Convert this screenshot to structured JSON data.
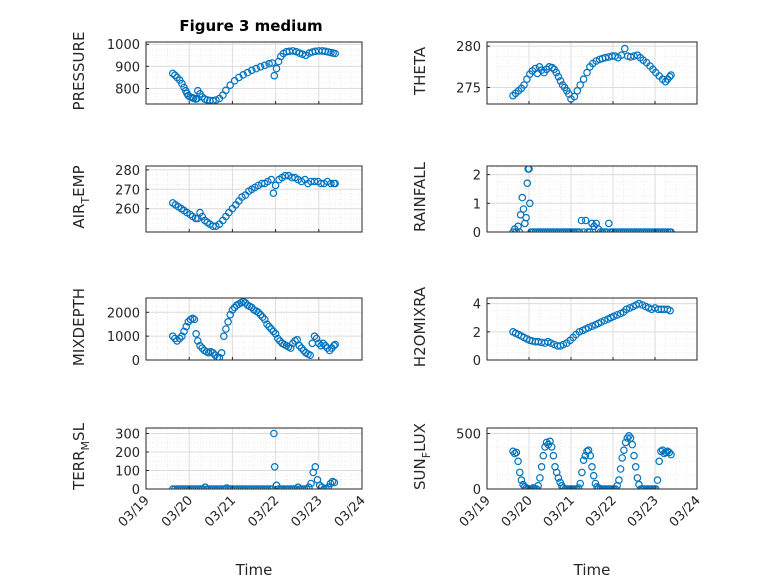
{
  "figure_title": "Figure 3 medium",
  "colors": {
    "marker": "#0072bd",
    "axis": "#262626",
    "grid": "#dcdcdc",
    "minor_grid": "#ebebeb"
  },
  "x_tick_labels": [
    "03/19",
    "03/20",
    "03/21",
    "03/22",
    "03/23",
    "03/24"
  ],
  "x_label": "Time",
  "chart_data": [
    {
      "type": "scatter",
      "id": "pressure",
      "ylabel": "PRESSURE",
      "ylim": [
        730,
        1010
      ],
      "yticks": [
        800,
        900,
        1000
      ],
      "xlim": [
        19,
        24
      ],
      "grid": true,
      "x": [
        19.62,
        19.67,
        19.72,
        19.78,
        19.83,
        19.88,
        19.92,
        19.95,
        19.98,
        20.02,
        20.07,
        20.1,
        20.15,
        20.18,
        20.2,
        20.25,
        20.3,
        20.36,
        20.42,
        20.48,
        20.55,
        20.62,
        20.7,
        20.78,
        20.85,
        20.95,
        21.05,
        21.15,
        21.25,
        21.35,
        21.45,
        21.55,
        21.65,
        21.75,
        21.85,
        21.92,
        21.97,
        22.02,
        22.07,
        22.12,
        22.18,
        22.25,
        22.32,
        22.4,
        22.48,
        22.55,
        22.62,
        22.7,
        22.78,
        22.85,
        22.92,
        23.0,
        23.08,
        23.15,
        23.22,
        23.28,
        23.33,
        23.38
      ],
      "y": [
        868,
        860,
        850,
        838,
        822,
        805,
        790,
        778,
        768,
        762,
        758,
        756,
        752,
        755,
        790,
        776,
        762,
        752,
        748,
        746,
        745,
        748,
        755,
        770,
        792,
        815,
        835,
        850,
        862,
        872,
        882,
        890,
        898,
        905,
        912,
        915,
        858,
        890,
        922,
        945,
        958,
        966,
        968,
        970,
        966,
        960,
        955,
        950,
        960,
        965,
        968,
        970,
        970,
        968,
        965,
        962,
        960,
        958
      ]
    },
    {
      "type": "scatter",
      "id": "theta",
      "ylabel": "THETA",
      "ylim": [
        273,
        280.5
      ],
      "yticks": [
        275,
        280
      ],
      "xlim": [
        19,
        24
      ],
      "grid": true,
      "x": [
        19.62,
        19.68,
        19.75,
        19.82,
        19.88,
        19.95,
        20.02,
        20.08,
        20.15,
        20.2,
        20.25,
        20.3,
        20.36,
        20.42,
        20.48,
        20.55,
        20.6,
        20.65,
        20.7,
        20.75,
        20.8,
        20.85,
        20.9,
        20.95,
        21.0,
        21.08,
        21.15,
        21.22,
        21.3,
        21.38,
        21.45,
        21.52,
        21.6,
        21.68,
        21.75,
        21.82,
        21.9,
        21.98,
        22.05,
        22.12,
        22.2,
        22.28,
        22.35,
        22.42,
        22.5,
        22.58,
        22.65,
        22.72,
        22.8,
        22.88,
        22.95,
        23.02,
        23.1,
        23.18,
        23.25,
        23.3,
        23.35,
        23.38
      ],
      "y": [
        274.0,
        274.3,
        274.6,
        274.9,
        275.3,
        276.0,
        276.6,
        277.0,
        277.3,
        276.7,
        277.5,
        277.1,
        276.8,
        277.2,
        277.5,
        277.4,
        277.2,
        276.8,
        276.3,
        275.8,
        275.3,
        275.0,
        274.6,
        274.2,
        273.6,
        273.9,
        274.6,
        275.3,
        276.0,
        276.8,
        277.5,
        277.9,
        278.2,
        278.4,
        278.5,
        278.6,
        278.7,
        278.8,
        278.8,
        278.6,
        278.9,
        279.7,
        278.8,
        278.7,
        278.8,
        278.9,
        278.6,
        278.3,
        278.0,
        277.6,
        277.2,
        276.8,
        276.4,
        276.0,
        275.7,
        276.0,
        276.3,
        276.5
      ]
    },
    {
      "type": "scatter",
      "id": "air_temp",
      "ylabel": "AIR_TEMP",
      "ylim": [
        248,
        282
      ],
      "yticks": [
        260,
        270,
        280
      ],
      "xlim": [
        19,
        24
      ],
      "grid": true,
      "x": [
        19.62,
        19.68,
        19.75,
        19.82,
        19.88,
        19.95,
        20.02,
        20.08,
        20.15,
        20.2,
        20.25,
        20.3,
        20.36,
        20.42,
        20.48,
        20.55,
        20.62,
        20.7,
        20.78,
        20.85,
        20.92,
        21.0,
        21.08,
        21.15,
        21.22,
        21.3,
        21.38,
        21.45,
        21.52,
        21.6,
        21.68,
        21.75,
        21.82,
        21.9,
        21.95,
        22.0,
        22.08,
        22.15,
        22.22,
        22.3,
        22.38,
        22.45,
        22.52,
        22.6,
        22.68,
        22.75,
        22.82,
        22.9,
        22.98,
        23.05,
        23.12,
        23.2,
        23.28,
        23.35,
        23.38
      ],
      "y": [
        263,
        262,
        261,
        260,
        259,
        258,
        257,
        256,
        255,
        255,
        258,
        256,
        254,
        253,
        252,
        251,
        251,
        252,
        254,
        256,
        258,
        260,
        262,
        264,
        266,
        267,
        269,
        270,
        271,
        272,
        273,
        273,
        274,
        275,
        268,
        272,
        275,
        276,
        277,
        277,
        276,
        276,
        275,
        274,
        275,
        273,
        274,
        274,
        274,
        273,
        273,
        274,
        273,
        273,
        273
      ]
    },
    {
      "type": "scatter",
      "id": "rainfall",
      "ylabel": "RAINFALL",
      "ylim": [
        0,
        2.3
      ],
      "yticks": [
        0,
        1,
        2
      ],
      "xlim": [
        19,
        24
      ],
      "grid": true,
      "x": [
        19.62,
        19.66,
        19.7,
        19.74,
        19.77,
        19.8,
        19.84,
        19.87,
        19.9,
        19.93,
        19.96,
        19.98,
        20.0,
        20.02,
        20.05,
        20.1,
        20.15,
        20.2,
        20.25,
        20.3,
        20.35,
        20.4,
        20.45,
        20.5,
        20.55,
        20.6,
        20.65,
        20.7,
        20.75,
        20.8,
        20.85,
        20.9,
        20.95,
        21.0,
        21.05,
        21.1,
        21.15,
        21.2,
        21.25,
        21.3,
        21.35,
        21.4,
        21.45,
        21.5,
        21.55,
        21.6,
        21.65,
        21.7,
        21.75,
        21.8,
        21.85,
        21.9,
        21.95,
        22.0,
        22.05,
        22.1,
        22.15,
        22.2,
        22.25,
        22.3,
        22.35,
        22.4,
        22.45,
        22.5,
        22.55,
        22.6,
        22.65,
        22.7,
        22.75,
        22.8,
        22.85,
        22.9,
        22.95,
        23.0,
        23.05,
        23.1,
        23.15,
        23.2,
        23.25,
        23.3,
        23.35,
        23.38
      ],
      "y": [
        0.0,
        0.1,
        0.0,
        0.2,
        0.0,
        0.6,
        1.2,
        0.8,
        0.3,
        0.5,
        1.7,
        2.2,
        2.2,
        1.0,
        0.0,
        0.0,
        0.0,
        0.0,
        0.0,
        0.0,
        0.0,
        0.0,
        0.0,
        0.0,
        0.0,
        0.0,
        0.0,
        0.0,
        0.0,
        0.0,
        0.0,
        0.0,
        0.0,
        0.0,
        0.0,
        0.0,
        0.0,
        0.0,
        0.4,
        0.0,
        0.4,
        0.0,
        0.0,
        0.3,
        0.2,
        0.3,
        0.1,
        0.0,
        0.0,
        0.0,
        0.0,
        0.3,
        0.0,
        0.0,
        0.0,
        0.0,
        0.0,
        0.0,
        0.0,
        0.0,
        0.0,
        0.0,
        0.0,
        0.0,
        0.0,
        0.0,
        0.0,
        0.0,
        0.0,
        0.0,
        0.0,
        0.0,
        0.0,
        0.0,
        0.0,
        0.0,
        0.0,
        0.0,
        0.0,
        0.0,
        0.0,
        0.0
      ]
    },
    {
      "type": "scatter",
      "id": "mixdepth",
      "ylabel": "MIXDEPTH",
      "ylim": [
        0,
        2600
      ],
      "yticks": [
        0,
        1000,
        2000
      ],
      "xlim": [
        19,
        24
      ],
      "grid": true,
      "x": [
        19.62,
        19.67,
        19.72,
        19.78,
        19.83,
        19.88,
        19.93,
        19.98,
        20.03,
        20.08,
        20.12,
        20.16,
        20.2,
        20.25,
        20.3,
        20.35,
        20.4,
        20.45,
        20.5,
        20.55,
        20.6,
        20.65,
        20.7,
        20.75,
        20.8,
        20.85,
        20.9,
        20.95,
        21.0,
        21.05,
        21.1,
        21.15,
        21.2,
        21.25,
        21.3,
        21.35,
        21.4,
        21.45,
        21.5,
        21.55,
        21.6,
        21.65,
        21.7,
        21.75,
        21.8,
        21.85,
        21.9,
        21.95,
        22.0,
        22.05,
        22.1,
        22.15,
        22.2,
        22.25,
        22.3,
        22.35,
        22.4,
        22.45,
        22.5,
        22.55,
        22.6,
        22.65,
        22.7,
        22.75,
        22.8,
        22.85,
        22.9,
        22.95,
        23.0,
        23.05,
        23.1,
        23.15,
        23.2,
        23.25,
        23.3,
        23.35,
        23.38
      ],
      "y": [
        1000,
        900,
        800,
        900,
        1000,
        1200,
        1400,
        1600,
        1700,
        1750,
        1700,
        1100,
        800,
        600,
        500,
        400,
        350,
        300,
        350,
        300,
        200,
        100,
        100,
        300,
        1000,
        1300,
        1600,
        1900,
        2100,
        2200,
        2300,
        2350,
        2400,
        2450,
        2400,
        2300,
        2250,
        2200,
        2100,
        2050,
        2000,
        1900,
        1800,
        1700,
        1500,
        1400,
        1300,
        1200,
        1100,
        900,
        800,
        700,
        650,
        600,
        550,
        500,
        700,
        800,
        850,
        600,
        500,
        400,
        300,
        250,
        200,
        700,
        1000,
        900,
        700,
        600,
        700,
        600,
        500,
        400,
        500,
        600,
        650
      ]
    },
    {
      "type": "scatter",
      "id": "h2omixra",
      "ylabel": "H2OMIXRA",
      "ylim": [
        0,
        4.4
      ],
      "yticks": [
        0,
        2,
        4
      ],
      "xlim": [
        19,
        24
      ],
      "grid": true,
      "x": [
        19.62,
        19.68,
        19.75,
        19.82,
        19.88,
        19.95,
        20.02,
        20.08,
        20.15,
        20.22,
        20.3,
        20.38,
        20.45,
        20.52,
        20.6,
        20.68,
        20.75,
        20.82,
        20.9,
        20.98,
        21.05,
        21.12,
        21.2,
        21.28,
        21.35,
        21.42,
        21.5,
        21.58,
        21.65,
        21.72,
        21.8,
        21.88,
        21.95,
        22.02,
        22.1,
        22.18,
        22.25,
        22.32,
        22.4,
        22.48,
        22.55,
        22.62,
        22.7,
        22.78,
        22.85,
        22.92,
        23.0,
        23.08,
        23.15,
        23.22,
        23.3,
        23.36
      ],
      "y": [
        2.0,
        1.9,
        1.8,
        1.7,
        1.6,
        1.5,
        1.4,
        1.35,
        1.3,
        1.3,
        1.25,
        1.2,
        1.3,
        1.2,
        1.1,
        1.0,
        1.0,
        1.1,
        1.2,
        1.4,
        1.6,
        1.8,
        2.0,
        2.1,
        2.2,
        2.3,
        2.4,
        2.5,
        2.6,
        2.7,
        2.8,
        2.9,
        3.0,
        3.1,
        3.2,
        3.3,
        3.4,
        3.6,
        3.7,
        3.8,
        3.9,
        4.0,
        3.9,
        3.8,
        3.7,
        3.6,
        3.7,
        3.6,
        3.6,
        3.6,
        3.6,
        3.5
      ]
    },
    {
      "type": "scatter",
      "id": "terr_msl",
      "ylabel": "TERR_MSL",
      "ylim": [
        0,
        330
      ],
      "yticks": [
        0,
        100,
        200,
        300
      ],
      "xlim": [
        19,
        24
      ],
      "grid": true,
      "x": [
        19.62,
        19.67,
        19.72,
        19.77,
        19.82,
        19.87,
        19.92,
        19.97,
        20.02,
        20.07,
        20.12,
        20.17,
        20.22,
        20.27,
        20.32,
        20.37,
        20.42,
        20.47,
        20.52,
        20.57,
        20.62,
        20.67,
        20.72,
        20.77,
        20.82,
        20.87,
        20.92,
        20.97,
        21.02,
        21.07,
        21.12,
        21.17,
        21.22,
        21.27,
        21.32,
        21.37,
        21.42,
        21.47,
        21.52,
        21.57,
        21.62,
        21.67,
        21.72,
        21.77,
        21.82,
        21.87,
        21.92,
        21.96,
        21.98,
        22.02,
        22.07,
        22.12,
        22.17,
        22.22,
        22.27,
        22.32,
        22.37,
        22.42,
        22.47,
        22.52,
        22.57,
        22.62,
        22.67,
        22.72,
        22.77,
        22.82,
        22.87,
        22.92,
        22.97,
        23.02,
        23.07,
        23.12,
        23.17,
        23.22,
        23.27,
        23.32,
        23.36
      ],
      "y": [
        0,
        0,
        0,
        0,
        0,
        0,
        0,
        0,
        0,
        0,
        0,
        0,
        0,
        0,
        0,
        10,
        0,
        0,
        0,
        0,
        0,
        0,
        0,
        0,
        0,
        5,
        0,
        0,
        0,
        0,
        0,
        0,
        0,
        0,
        0,
        0,
        0,
        0,
        0,
        0,
        0,
        0,
        0,
        0,
        0,
        0,
        0,
        300,
        120,
        20,
        0,
        0,
        0,
        0,
        0,
        0,
        0,
        0,
        0,
        10,
        0,
        0,
        0,
        0,
        10,
        30,
        90,
        120,
        50,
        20,
        10,
        0,
        0,
        10,
        30,
        40,
        35
      ]
    },
    {
      "type": "scatter",
      "id": "sun_flux",
      "ylabel": "SUN_FLUX",
      "ylim": [
        0,
        550
      ],
      "yticks": [
        0,
        500
      ],
      "xlim": [
        19,
        24
      ],
      "grid": true,
      "x": [
        19.62,
        19.66,
        19.7,
        19.74,
        19.78,
        19.82,
        19.86,
        19.9,
        19.94,
        19.98,
        20.02,
        20.06,
        20.1,
        20.14,
        20.18,
        20.22,
        20.26,
        20.3,
        20.34,
        20.38,
        20.42,
        20.46,
        20.5,
        20.54,
        20.58,
        20.62,
        20.66,
        20.7,
        20.74,
        20.78,
        20.82,
        20.86,
        20.9,
        20.94,
        20.98,
        21.02,
        21.06,
        21.1,
        21.14,
        21.18,
        21.22,
        21.26,
        21.3,
        21.34,
        21.38,
        21.42,
        21.46,
        21.5,
        21.54,
        21.58,
        21.62,
        21.66,
        21.7,
        21.74,
        21.78,
        21.82,
        21.86,
        21.9,
        21.94,
        21.98,
        22.02,
        22.06,
        22.1,
        22.14,
        22.18,
        22.22,
        22.26,
        22.3,
        22.34,
        22.38,
        22.42,
        22.46,
        22.5,
        22.54,
        22.58,
        22.62,
        22.66,
        22.7,
        22.74,
        22.78,
        22.82,
        22.86,
        22.9,
        22.94,
        22.98,
        23.02,
        23.06,
        23.1,
        23.14,
        23.18,
        23.22,
        23.26,
        23.3,
        23.34,
        23.38
      ],
      "y": [
        340,
        320,
        330,
        250,
        150,
        80,
        40,
        20,
        10,
        0,
        0,
        0,
        10,
        0,
        0,
        30,
        100,
        200,
        300,
        380,
        420,
        400,
        430,
        380,
        300,
        200,
        150,
        100,
        60,
        30,
        10,
        0,
        0,
        0,
        0,
        0,
        0,
        0,
        0,
        10,
        50,
        150,
        260,
        300,
        340,
        350,
        300,
        200,
        120,
        50,
        20,
        10,
        0,
        0,
        0,
        0,
        0,
        0,
        0,
        0,
        0,
        0,
        30,
        80,
        180,
        280,
        350,
        420,
        460,
        480,
        460,
        400,
        300,
        200,
        100,
        40,
        0,
        0,
        0,
        0,
        0,
        0,
        0,
        0,
        0,
        0,
        80,
        250,
        340,
        350,
        320,
        330,
        340,
        330,
        310
      ]
    }
  ]
}
